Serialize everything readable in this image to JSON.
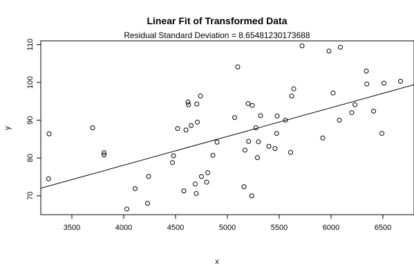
{
  "chart_data": {
    "type": "scatter",
    "title": "Linear Fit of Transformed Data",
    "subtitle": "Residual Standard Deviation =  8.65481230173688",
    "xlabel": "x",
    "ylabel": "y",
    "xlim": [
      3200,
      6800
    ],
    "ylim": [
      65,
      111
    ],
    "x_ticks": [
      3500,
      4000,
      4500,
      5000,
      5500,
      6000,
      6500
    ],
    "y_ticks": [
      70,
      80,
      90,
      100,
      110
    ],
    "grid": false,
    "legend": "none",
    "colors": {
      "points": "#000000",
      "line": "#000000",
      "frame": "#000000"
    },
    "fit_line": {
      "x": [
        3200,
        6800
      ],
      "y": [
        72.0,
        99.4
      ]
    },
    "points": [
      {
        "x": 3280,
        "y": 86.4
      },
      {
        "x": 3275,
        "y": 74.5
      },
      {
        "x": 3700,
        "y": 88.0
      },
      {
        "x": 3810,
        "y": 81.4
      },
      {
        "x": 3810,
        "y": 80.8
      },
      {
        "x": 4030,
        "y": 66.5
      },
      {
        "x": 4110,
        "y": 71.9
      },
      {
        "x": 4230,
        "y": 68.0
      },
      {
        "x": 4240,
        "y": 75.1
      },
      {
        "x": 4470,
        "y": 78.8
      },
      {
        "x": 4480,
        "y": 80.6
      },
      {
        "x": 4520,
        "y": 87.8
      },
      {
        "x": 4580,
        "y": 71.3
      },
      {
        "x": 4600,
        "y": 87.4
      },
      {
        "x": 4620,
        "y": 94.8
      },
      {
        "x": 4625,
        "y": 94.1
      },
      {
        "x": 4650,
        "y": 88.6
      },
      {
        "x": 4690,
        "y": 73.1
      },
      {
        "x": 4700,
        "y": 70.6
      },
      {
        "x": 4705,
        "y": 94.3
      },
      {
        "x": 4710,
        "y": 89.5
      },
      {
        "x": 4740,
        "y": 96.4
      },
      {
        "x": 4750,
        "y": 75.1
      },
      {
        "x": 4800,
        "y": 73.6
      },
      {
        "x": 4810,
        "y": 76.1
      },
      {
        "x": 4860,
        "y": 80.7
      },
      {
        "x": 4900,
        "y": 84.2
      },
      {
        "x": 5070,
        "y": 90.7
      },
      {
        "x": 5100,
        "y": 104.1
      },
      {
        "x": 5160,
        "y": 72.4
      },
      {
        "x": 5170,
        "y": 82.1
      },
      {
        "x": 5200,
        "y": 94.4
      },
      {
        "x": 5205,
        "y": 84.4
      },
      {
        "x": 5235,
        "y": 70.0
      },
      {
        "x": 5240,
        "y": 93.9
      },
      {
        "x": 5275,
        "y": 88.0
      },
      {
        "x": 5290,
        "y": 80.1
      },
      {
        "x": 5300,
        "y": 84.3
      },
      {
        "x": 5320,
        "y": 91.2
      },
      {
        "x": 5400,
        "y": 83.1
      },
      {
        "x": 5460,
        "y": 82.5
      },
      {
        "x": 5475,
        "y": 86.5
      },
      {
        "x": 5480,
        "y": 91.1
      },
      {
        "x": 5560,
        "y": 90.0
      },
      {
        "x": 5610,
        "y": 81.5
      },
      {
        "x": 5620,
        "y": 96.4
      },
      {
        "x": 5640,
        "y": 98.3
      },
      {
        "x": 5720,
        "y": 109.7
      },
      {
        "x": 5920,
        "y": 85.3
      },
      {
        "x": 5980,
        "y": 108.3
      },
      {
        "x": 6020,
        "y": 97.2
      },
      {
        "x": 6080,
        "y": 90.0
      },
      {
        "x": 6090,
        "y": 109.3
      },
      {
        "x": 6200,
        "y": 92.0
      },
      {
        "x": 6230,
        "y": 94.1
      },
      {
        "x": 6340,
        "y": 103.0
      },
      {
        "x": 6345,
        "y": 99.6
      },
      {
        "x": 6410,
        "y": 92.4
      },
      {
        "x": 6490,
        "y": 86.5
      },
      {
        "x": 6510,
        "y": 99.8
      },
      {
        "x": 6670,
        "y": 100.3
      }
    ]
  }
}
